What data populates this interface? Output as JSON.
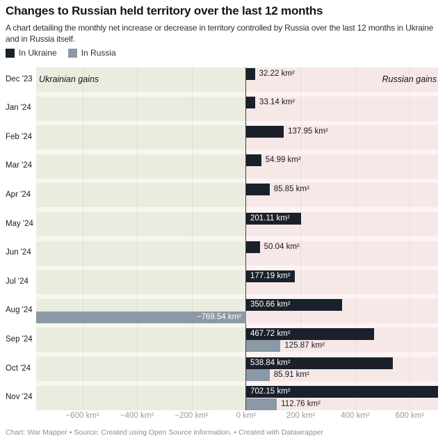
{
  "header": {
    "title": "Changes to Russian held territory over the last 12 months",
    "subtitle": "A chart detailing the monthly net increase or decrease in territory controlled by Russia over the last 12 months in Ukraine and in Russia itself."
  },
  "legend": {
    "items": [
      {
        "label": "In Ukraine",
        "color": "#1a212b"
      },
      {
        "label": "In Russia",
        "color": "#8b98a6"
      }
    ]
  },
  "annotations": {
    "left": "Ukrainian gains",
    "right": "Russian gains"
  },
  "chart_data": {
    "type": "bar",
    "orientation": "horizontal",
    "title": "Changes to Russian held territory over the last 12 months",
    "unit": "km²",
    "categories": [
      "Dec '23",
      "Jan '24",
      "Feb '24",
      "Mar '24",
      "Apr '24",
      "May '24",
      "Jun '24",
      "Jul '24",
      "Aug '24",
      "Sep '24",
      "Oct '24",
      "Nov '24"
    ],
    "series": [
      {
        "name": "In Ukraine",
        "color": "#1a212b",
        "values": [
          32.22,
          33.14,
          137.95,
          54.99,
          85.85,
          201.11,
          50.04,
          177.19,
          350.66,
          467.72,
          538.84,
          702.15
        ],
        "labels": [
          "32.22 km²",
          "33.14 km²",
          "137.95 km²",
          "54.99 km²",
          "85.85 km²",
          "201.11 km²",
          "50.04 km²",
          "177.19 km²",
          "350.66 km²",
          "467.72 km²",
          "538.84 km²",
          "702.15 km²"
        ]
      },
      {
        "name": "In Russia",
        "color": "#8b98a6",
        "values": [
          null,
          null,
          null,
          null,
          null,
          null,
          null,
          null,
          -769.54,
          125.87,
          85.91,
          112.76
        ],
        "labels": [
          null,
          null,
          null,
          null,
          null,
          null,
          null,
          null,
          "−769.54 km²",
          "125.87 km²",
          "85.91 km²",
          "112.76 km²"
        ]
      }
    ],
    "x_axis": {
      "ticks": [
        -600,
        -400,
        -200,
        0,
        200,
        400,
        600
      ],
      "tick_labels": [
        "−600 km²",
        "−400 km²",
        "−200 km²",
        "0 km²",
        "200 km²",
        "400 km²",
        "600 km²"
      ],
      "range": [
        -769.54,
        703
      ]
    },
    "legend_position": "top-left",
    "grid": true,
    "background": {
      "negative_band": "#ebece0",
      "positive_band": "#f7e8e8",
      "negative_base": "#f7f7ee",
      "positive_base": "#fcf3f2"
    },
    "zero_line_color": "#3d3d3d",
    "label_color_outside": "#1a1a1a",
    "label_color_inside": "#ffffff"
  },
  "footer": {
    "text": "Chart: War Mapper • Source: Created using Open Source information.  • Created with Datawrapper"
  }
}
